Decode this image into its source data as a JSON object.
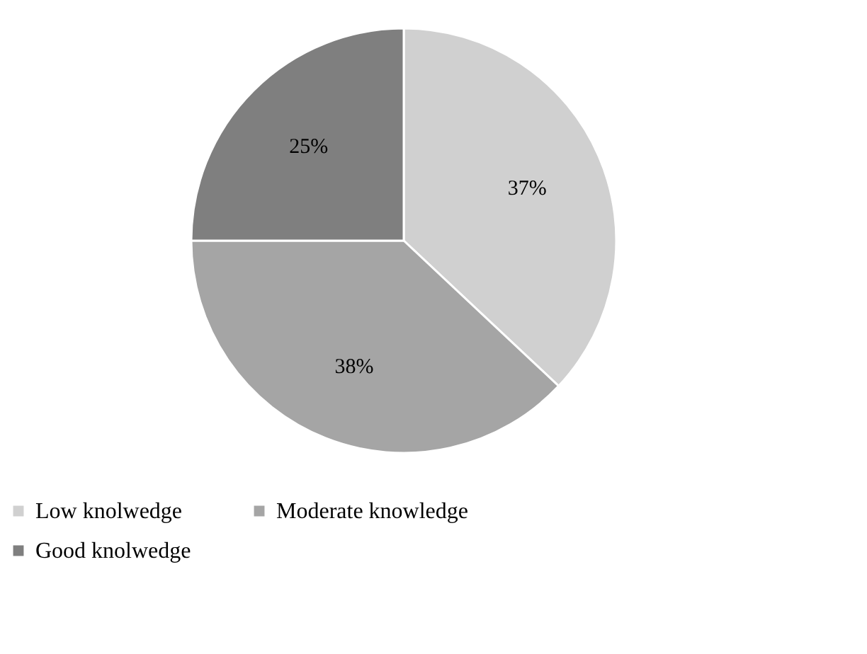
{
  "chart_data": {
    "type": "pie",
    "categories": [
      "Low knolwedge",
      "Moderate knowledge",
      "Good knolwedge"
    ],
    "values": [
      37,
      38,
      25
    ],
    "colors": [
      "#d0d0d0",
      "#a5a5a5",
      "#7f7f7f"
    ],
    "value_labels": [
      "37%",
      "38%",
      "25%"
    ],
    "legend": "bottom"
  }
}
